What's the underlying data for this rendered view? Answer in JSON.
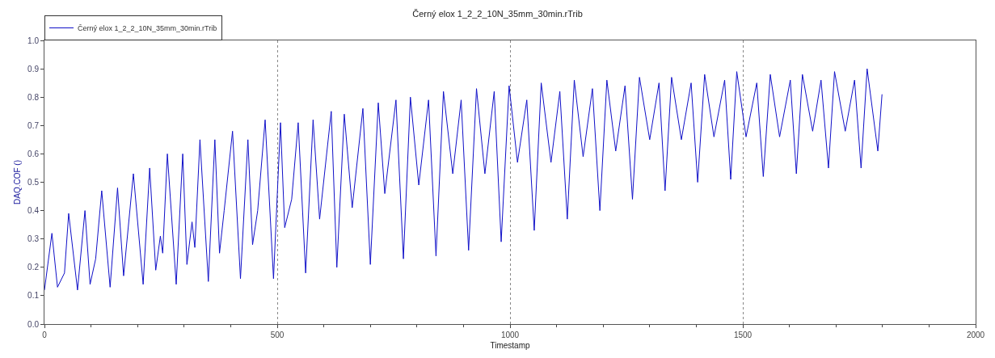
{
  "chart_data": {
    "type": "line",
    "title": "Černý elox 1_2_2_10N_35mm_30min.rTrib",
    "xlabel": "Timestamp",
    "ylabel": "DAQ.COF ()",
    "series": [
      {
        "name": "Černý elox 1_2_2_10N_35mm_30min.rTrib",
        "color": "#1010c8",
        "x": [
          0,
          16,
          28,
          43,
          52,
          71,
          87,
          98,
          110,
          123,
          141,
          157,
          170,
          191,
          212,
          226,
          239,
          249,
          254,
          264,
          283,
          297,
          306,
          317,
          323,
          334,
          352,
          366,
          376,
          386,
          404,
          421,
          437,
          447,
          458,
          474,
          492,
          507,
          516,
          531,
          545,
          561,
          577,
          591,
          616,
          628,
          644,
          661,
          684,
          700,
          717,
          731,
          755,
          771,
          786,
          804,
          825,
          841,
          857,
          877,
          895,
          911,
          928,
          946,
          966,
          981,
          998,
          1016,
          1036,
          1052,
          1067,
          1088,
          1107,
          1123,
          1138,
          1157,
          1177,
          1193,
          1208,
          1227,
          1247,
          1263,
          1278,
          1300,
          1320,
          1333,
          1347,
          1368,
          1389,
          1403,
          1418,
          1438,
          1461,
          1474,
          1487,
          1507,
          1530,
          1544,
          1559,
          1579,
          1602,
          1615,
          1628,
          1650,
          1668,
          1684,
          1697,
          1720,
          1740,
          1754,
          1767,
          1790,
          1799
        ],
        "values": [
          0.12,
          0.32,
          0.13,
          0.18,
          0.39,
          0.12,
          0.4,
          0.14,
          0.23,
          0.47,
          0.13,
          0.48,
          0.17,
          0.53,
          0.14,
          0.55,
          0.19,
          0.31,
          0.25,
          0.6,
          0.14,
          0.6,
          0.21,
          0.36,
          0.27,
          0.65,
          0.15,
          0.65,
          0.25,
          0.4,
          0.68,
          0.16,
          0.65,
          0.28,
          0.4,
          0.72,
          0.16,
          0.71,
          0.34,
          0.44,
          0.71,
          0.18,
          0.72,
          0.37,
          0.75,
          0.2,
          0.74,
          0.41,
          0.76,
          0.21,
          0.78,
          0.46,
          0.79,
          0.23,
          0.8,
          0.49,
          0.79,
          0.24,
          0.82,
          0.53,
          0.79,
          0.26,
          0.83,
          0.53,
          0.82,
          0.29,
          0.84,
          0.57,
          0.79,
          0.33,
          0.85,
          0.57,
          0.82,
          0.37,
          0.86,
          0.59,
          0.83,
          0.4,
          0.86,
          0.61,
          0.84,
          0.44,
          0.87,
          0.65,
          0.85,
          0.47,
          0.87,
          0.65,
          0.85,
          0.5,
          0.88,
          0.66,
          0.86,
          0.51,
          0.89,
          0.66,
          0.85,
          0.52,
          0.88,
          0.66,
          0.86,
          0.53,
          0.88,
          0.68,
          0.86,
          0.55,
          0.89,
          0.68,
          0.86,
          0.55,
          0.9,
          0.61,
          0.81
        ]
      }
    ],
    "xlim": [
      0,
      2000
    ],
    "xticks": [
      0,
      500,
      1000,
      1500,
      2000
    ],
    "ylim": [
      0,
      1.0
    ],
    "yticks": [
      {
        "value": 0,
        "label": "0.0"
      },
      0.1,
      0.2,
      0.3,
      0.4,
      0.5,
      0.6,
      0.7,
      0.8,
      0.9,
      {
        "value": 1.0,
        "label": "1.0"
      }
    ],
    "grid": "x",
    "legend": "top left",
    "marker": "none",
    "line_style": "solid"
  }
}
